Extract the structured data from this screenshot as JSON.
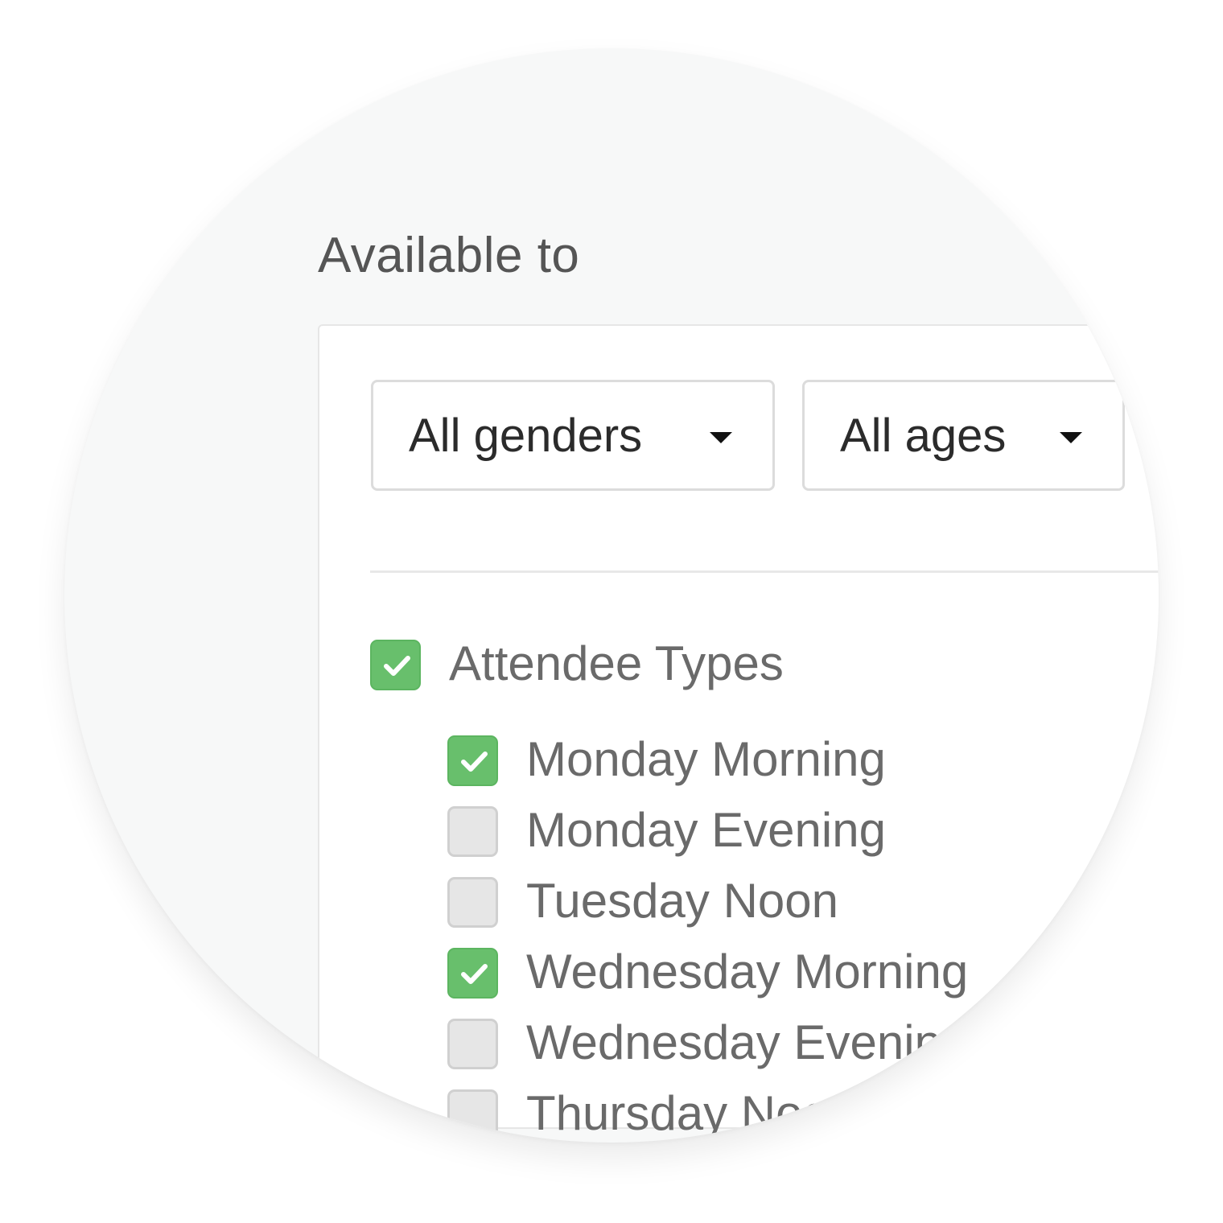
{
  "section_title": "Available to",
  "filters": {
    "gender": {
      "selected": "All genders",
      "icon": "caret-down-icon"
    },
    "age": {
      "selected": "All ages",
      "icon": "caret-down-icon"
    }
  },
  "group": {
    "label": "Attendee Types",
    "checked": true
  },
  "items": [
    {
      "label": "Monday Morning",
      "checked": true
    },
    {
      "label": "Monday Evening",
      "checked": false
    },
    {
      "label": "Tuesday Noon",
      "checked": false
    },
    {
      "label": "Wednesday Morning",
      "checked": true
    },
    {
      "label": "Wednesday Evening",
      "checked": false
    },
    {
      "label": "Thursday Noon",
      "checked": false
    }
  ],
  "colors": {
    "checked": "#68bf6c",
    "unchecked": "#e6e6e6",
    "text": "#6a6a6a"
  }
}
